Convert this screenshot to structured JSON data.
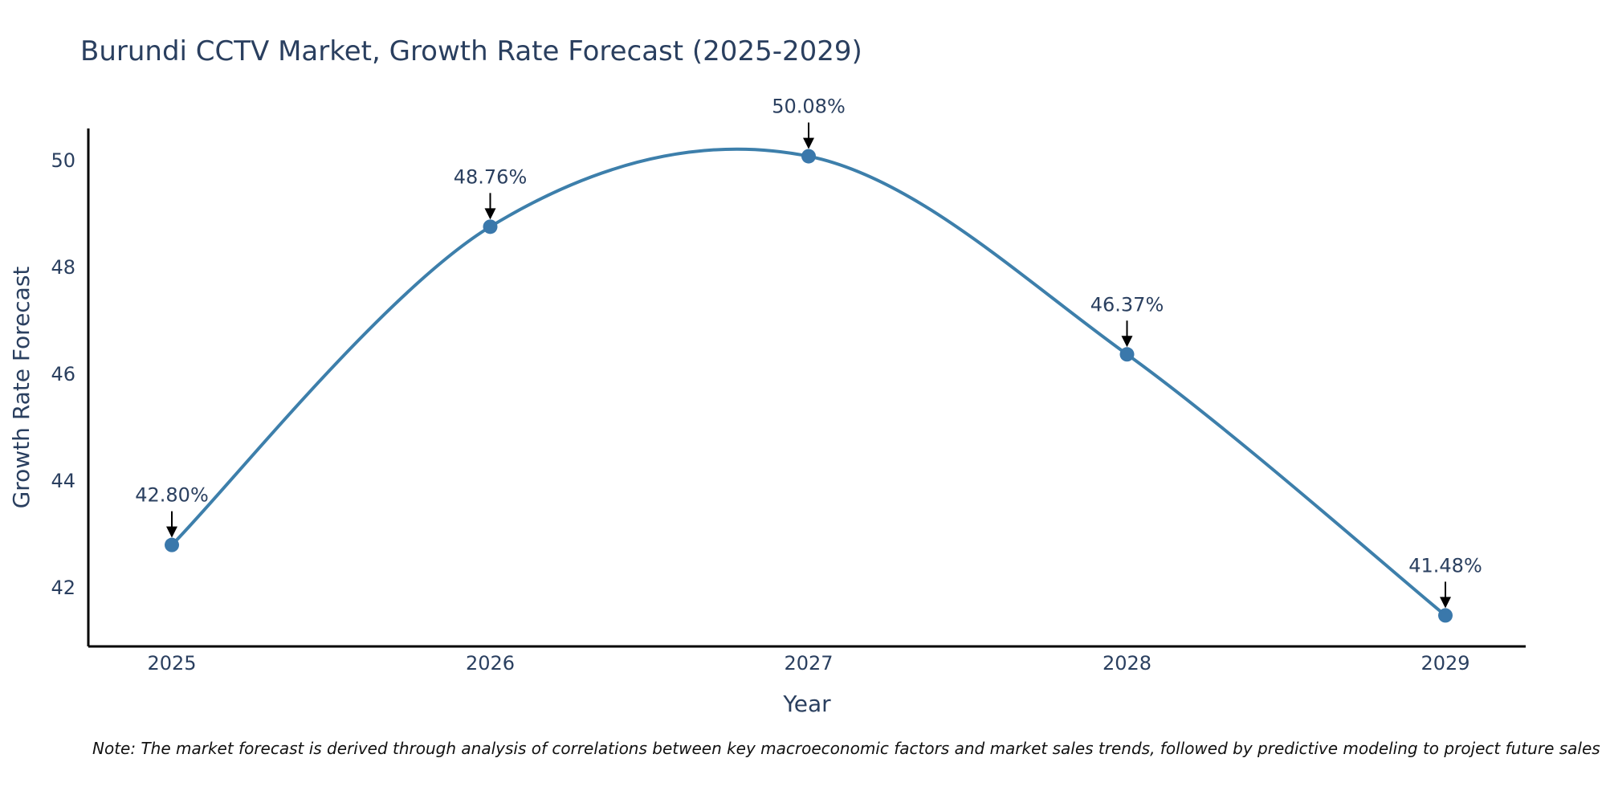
{
  "title": "Burundi CCTV Market, Growth Rate Forecast (2025-2029)",
  "note": "Note: The market forecast is derived through analysis of correlations between key macroeconomic factors and market sales trends, followed by predictive modeling to project future sales",
  "colors": {
    "line": "#3d7fab",
    "marker": "#3a78ab",
    "axis": "#000000",
    "text": "#2a3f5f",
    "arrow": "#000000"
  },
  "chart_data": {
    "type": "line",
    "title": "Burundi CCTV Market, Growth Rate Forecast (2025-2029)",
    "xlabel": "Year",
    "ylabel": "Growth Rate Forecast",
    "categories": [
      "2025",
      "2026",
      "2027",
      "2028",
      "2029"
    ],
    "series": [
      {
        "name": "Growth Rate Forecast",
        "values": [
          42.8,
          48.76,
          50.08,
          46.37,
          41.48
        ]
      }
    ],
    "data_labels": [
      "42.80%",
      "48.76%",
      "50.08%",
      "46.37%",
      "41.48%"
    ],
    "yticks": [
      42,
      44,
      46,
      48,
      50
    ],
    "ylim": [
      40.9,
      50.6
    ],
    "smoothing": "spline",
    "grid": false,
    "legend": "none"
  }
}
